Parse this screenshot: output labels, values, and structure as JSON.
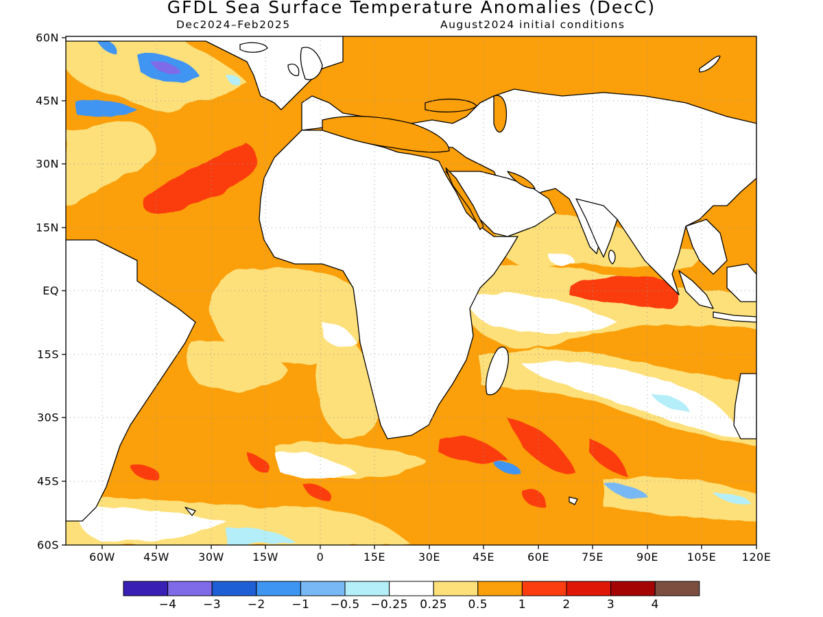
{
  "title": "GFDL Sea Surface Temperature Anomalies (DecC)",
  "subtitle_left": "Dec2024–Feb2025",
  "subtitle_right": "August2024 initial conditions",
  "map": {
    "lon_range": [
      -70,
      120
    ],
    "lat_range": [
      -60,
      60
    ],
    "grid": "dotted",
    "y_tick_labels": [
      "60N",
      "45N",
      "30N",
      "15N",
      "EQ",
      "15S",
      "30S",
      "45S",
      "60S"
    ],
    "x_tick_labels": [
      "60W",
      "45W",
      "30W",
      "15W",
      "0",
      "15E",
      "30E",
      "45E",
      "60E",
      "75E",
      "90E",
      "105E",
      "120E"
    ]
  },
  "colorbar": {
    "colors": [
      "#3a1fb5",
      "#7f6ae8",
      "#1f5fd6",
      "#3f95f2",
      "#78b8f5",
      "#b4eef8",
      "#ffffff",
      "#fde07a",
      "#fb9f0a",
      "#fb3d10",
      "#de1706",
      "#a40404",
      "#7b4e40"
    ],
    "labels": [
      "−4",
      "−3",
      "−2",
      "−1",
      "−0.5",
      "−0.25",
      "0.25",
      "0.5",
      "1",
      "2",
      "3",
      "4"
    ]
  },
  "legend_colors": {
    "land": "#ffffff",
    "coast": "#000000",
    "warm_light": "#fde07a",
    "warm": "#fb9f0a",
    "hot": "#fb3d10",
    "cool_light": "#b4eef8",
    "cool": "#78b8f5",
    "cold": "#3f95f2",
    "colder": "#1f5fd6",
    "coldest": "#7f6ae8"
  }
}
